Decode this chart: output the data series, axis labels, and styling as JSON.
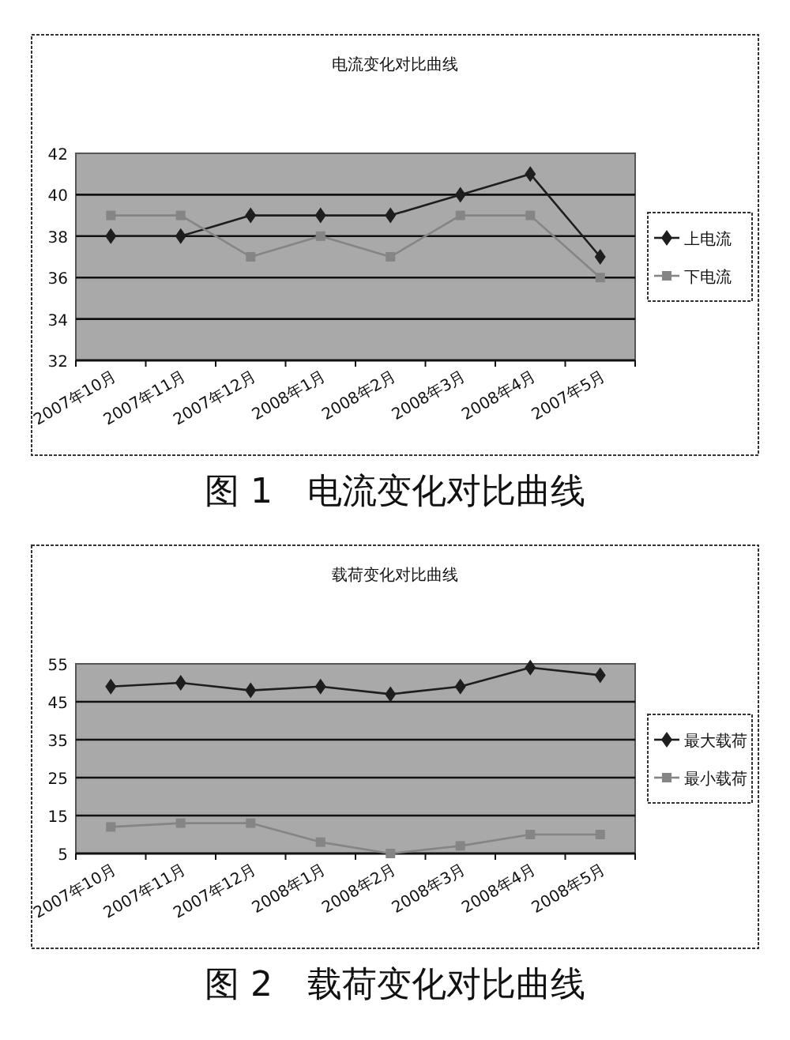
{
  "chart_data": [
    {
      "type": "line",
      "title": "电流变化对比曲线",
      "annotations": [
        "图 1　电流变化对比曲线"
      ],
      "categories": [
        "2007年10月",
        "2007年11月",
        "2007年12月",
        "2008年1月",
        "2008年2月",
        "2008年3月",
        "2008年4月",
        "2007年5月"
      ],
      "series": [
        {
          "name": "上电流",
          "color": "#1e1e1e",
          "marker": "diamond",
          "values": [
            38,
            38,
            39,
            39,
            39,
            40,
            41,
            37
          ]
        },
        {
          "name": "下电流",
          "color": "#858585",
          "marker": "square",
          "values": [
            39,
            39,
            37,
            38,
            37,
            39,
            39,
            36
          ]
        }
      ],
      "ylim": [
        32,
        42
      ],
      "yticks": [
        32,
        34,
        36,
        38,
        40,
        42
      ],
      "grid": "y",
      "legend": "right"
    },
    {
      "type": "line",
      "title": "载荷变化对比曲线",
      "annotations": [
        "图 2　载荷变化对比曲线"
      ],
      "categories": [
        "2007年10月",
        "2007年11月",
        "2007年12月",
        "2008年1月",
        "2008年2月",
        "2008年3月",
        "2008年4月",
        "2008年5月"
      ],
      "series": [
        {
          "name": "最大载荷",
          "color": "#1e1e1e",
          "marker": "diamond",
          "values": [
            49,
            50,
            48,
            49,
            47,
            49,
            54,
            52
          ]
        },
        {
          "name": "最小载荷",
          "color": "#858585",
          "marker": "square",
          "values": [
            12,
            13,
            13,
            8,
            5,
            7,
            10,
            10
          ]
        }
      ],
      "ylim": [
        5,
        55
      ],
      "yticks": [
        5,
        15,
        25,
        35,
        45,
        55
      ],
      "grid": "y",
      "legend": "right"
    }
  ]
}
